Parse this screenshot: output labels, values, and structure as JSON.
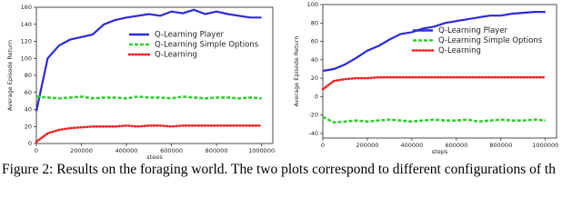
{
  "chart_data": [
    {
      "type": "line",
      "y_label": "Average Episode Return",
      "x_label": "steps",
      "x": [
        0,
        50000,
        100000,
        150000,
        200000,
        250000,
        300000,
        350000,
        400000,
        450000,
        500000,
        550000,
        600000,
        650000,
        700000,
        750000,
        800000,
        850000,
        900000,
        950000,
        1000000
      ],
      "series": [
        {
          "name": "Q-Learning Player",
          "color": "#2b2bd6",
          "linestyle": "solid",
          "values": [
            38,
            100,
            115,
            122,
            125,
            128,
            140,
            145,
            148,
            150,
            152,
            150,
            155,
            153,
            157,
            152,
            155,
            152,
            150,
            148,
            148
          ]
        },
        {
          "name": "Q-Learning Simple Options",
          "color": "#33cc33",
          "linestyle": "dashed",
          "values": [
            55,
            54,
            53,
            54,
            55,
            53,
            54,
            54,
            53,
            55,
            54,
            54,
            53,
            55,
            54,
            53,
            54,
            54,
            53,
            54,
            53
          ]
        },
        {
          "name": "Q-Learning",
          "color": "#ee2222",
          "linestyle": "dotted",
          "values": [
            2,
            12,
            16,
            18,
            19,
            20,
            20,
            20,
            21,
            20,
            21,
            21,
            20,
            21,
            21,
            21,
            21,
            21,
            21,
            21,
            21
          ]
        }
      ],
      "xlim": [
        0,
        1050000
      ],
      "xticks": [
        0,
        200000,
        400000,
        600000,
        800000,
        1000000
      ],
      "ylim": [
        0,
        160
      ],
      "yticks": [
        0,
        20,
        40,
        60,
        80,
        100,
        120,
        140,
        160
      ],
      "legend": "center right"
    },
    {
      "type": "line",
      "y_label": "Average Episode Return",
      "x_label": "steps",
      "x": [
        0,
        50000,
        100000,
        150000,
        200000,
        250000,
        300000,
        350000,
        400000,
        450000,
        500000,
        550000,
        600000,
        650000,
        700000,
        750000,
        800000,
        850000,
        900000,
        950000,
        1000000
      ],
      "series": [
        {
          "name": "Q-Learning Player",
          "color": "#2b2bd6",
          "linestyle": "solid",
          "values": [
            28,
            30,
            35,
            42,
            50,
            55,
            62,
            68,
            70,
            74,
            76,
            80,
            82,
            84,
            86,
            88,
            88,
            90,
            91,
            92,
            92
          ]
        },
        {
          "name": "Q-Learning Simple Options",
          "color": "#33cc33",
          "linestyle": "dashed",
          "values": [
            -22,
            -28,
            -27,
            -26,
            -27,
            -26,
            -25,
            -26,
            -27,
            -26,
            -25,
            -26,
            -26,
            -25,
            -27,
            -26,
            -25,
            -26,
            -26,
            -25,
            -26
          ]
        },
        {
          "name": "Q-Learning",
          "color": "#ee2222",
          "linestyle": "dotted",
          "values": [
            8,
            17,
            19,
            20,
            20,
            21,
            21,
            21,
            21,
            21,
            21,
            21,
            21,
            21,
            21,
            21,
            21,
            21,
            21,
            21,
            21
          ]
        }
      ],
      "xlim": [
        0,
        1050000
      ],
      "xticks": [
        0,
        200000,
        400000,
        600000,
        800000,
        1000000
      ],
      "ylim": [
        -45,
        100
      ],
      "yticks": [
        -40,
        -20,
        0,
        20,
        40,
        60,
        80,
        100
      ],
      "legend": "center right"
    }
  ],
  "caption": "Figure 2: Results on the foraging world. The two plots correspond to different configurations of th"
}
